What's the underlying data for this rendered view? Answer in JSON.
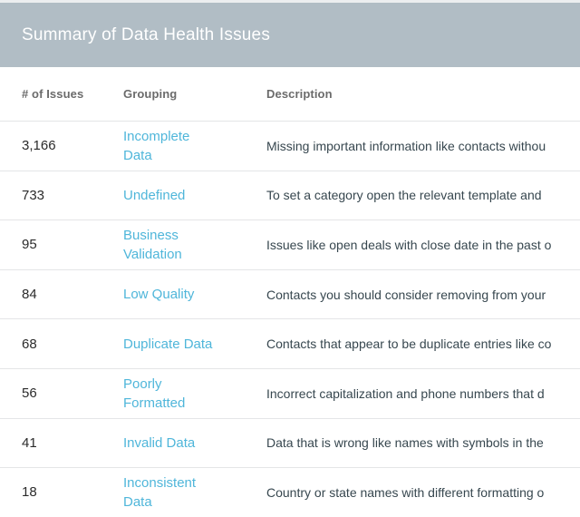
{
  "panel": {
    "title": "Summary of Data Health Issues"
  },
  "colors": {
    "header_bar": "#b1bdc5",
    "link_accent": "#4fb6da",
    "row_divider": "#e4e5e7"
  },
  "table": {
    "columns": [
      {
        "label": "# of Issues"
      },
      {
        "label": "Grouping"
      },
      {
        "label": "Description"
      }
    ],
    "rows": [
      {
        "count": "3,166",
        "grouping": "Incomplete\nData",
        "description": "Missing important information like contacts withou"
      },
      {
        "count": "733",
        "grouping": "Undefined",
        "description": "To set a category open the relevant template and "
      },
      {
        "count": "95",
        "grouping": "Business\nValidation",
        "description": "Issues like open deals with close date in the past o"
      },
      {
        "count": "84",
        "grouping": "Low Quality",
        "description": "Contacts you should consider removing from your"
      },
      {
        "count": "68",
        "grouping": "Duplicate Data",
        "description": "Contacts that appear to be duplicate entries like co"
      },
      {
        "count": "56",
        "grouping": "Poorly\nFormatted",
        "description": "Incorrect capitalization and phone numbers that d"
      },
      {
        "count": "41",
        "grouping": "Invalid Data",
        "description": "Data that is wrong like names with symbols in the"
      },
      {
        "count": "18",
        "grouping": "Inconsistent\nData",
        "description": "Country or state names with different formatting o"
      }
    ]
  }
}
